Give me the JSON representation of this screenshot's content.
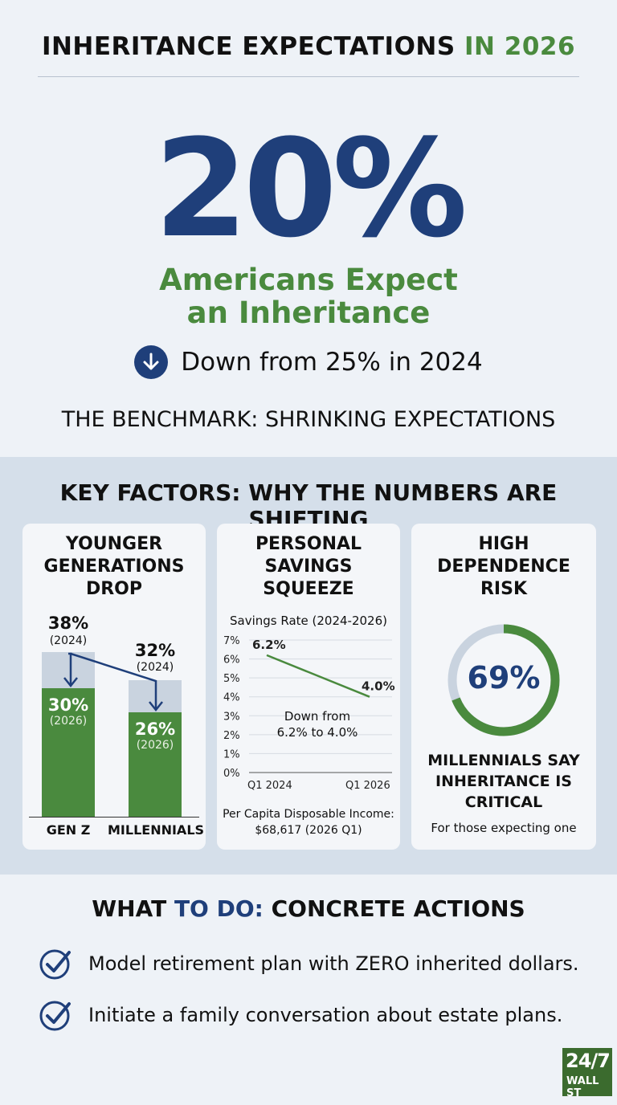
{
  "header": {
    "title_main": "INHERITANCE EXPECTATIONS ",
    "title_year": "IN 2026"
  },
  "hero": {
    "big_stat": "20%",
    "subtitle_line1": "Americans Expect",
    "subtitle_line2": "an Inheritance",
    "change_text": "Down from 25% in 2024",
    "change_icon": "arrow-down-icon",
    "benchmark": "THE BENCHMARK: SHRINKING EXPECTATIONS"
  },
  "key_factors": {
    "title": "KEY FACTORS: WHY THE NUMBERS ARE SHIFTING",
    "younger": {
      "title_line1": "YOUNGER",
      "title_line2": "GENERATIONS",
      "title_line3": "DROP",
      "genz": {
        "label": "GEN Z",
        "v2024": "38%",
        "y2024": "(2024)",
        "v2026": "30%",
        "y2026": "(2026)"
      },
      "millennials": {
        "label": "MILLENNIALS",
        "v2024": "32%",
        "y2024": "(2024)",
        "v2026": "26%",
        "y2026": "(2026)"
      }
    },
    "savings": {
      "title_line1": "PERSONAL",
      "title_line2": "SAVINGS",
      "title_line3": "SQUEEZE",
      "chart_title": "Savings Rate (2024-2026)",
      "y_ticks": [
        "7%",
        "6%",
        "5%",
        "4%",
        "3%",
        "2%",
        "1%",
        "0%"
      ],
      "start_label": "6.2%",
      "end_label": "4.0%",
      "note_line1": "Down from",
      "note_line2": "6.2% to 4.0%",
      "x_start": "Q1 2024",
      "x_end": "Q1 2026",
      "income_line1": "Per Capita Disposable Income:",
      "income_line2": "$68,617 (2026 Q1)"
    },
    "dependence": {
      "title_line1": "HIGH",
      "title_line2": "DEPENDENCE",
      "title_line3": "RISK",
      "value": "69%",
      "fraction": 0.69,
      "label_line1": "MILLENNIALS SAY",
      "label_line2": "INHERITANCE IS",
      "label_line3": "CRITICAL",
      "note": "For those expecting one"
    }
  },
  "actions": {
    "title_a": "WHAT ",
    "title_b": "TO DO:",
    "title_c": " CONCRETE ACTIONS",
    "items": [
      {
        "icon": "check-circle-icon",
        "text": "Model retirement plan with ZERO inherited dollars."
      },
      {
        "icon": "check-circle-icon",
        "text": "Initiate a family conversation about estate plans."
      }
    ]
  },
  "logo": {
    "line1": "24/7",
    "line2": "WALL ST"
  },
  "colors": {
    "navy": "#1f3f7a",
    "green": "#4a8a3e",
    "band": "#d5dfea"
  },
  "chart_data": [
    {
      "type": "bar",
      "categories": [
        "GEN Z",
        "MILLENNIALS"
      ],
      "series": [
        {
          "name": "2024",
          "values": [
            38,
            32
          ]
        },
        {
          "name": "2026",
          "values": [
            30,
            26
          ]
        }
      ]
    },
    {
      "type": "line",
      "title": "Savings Rate (2024-2026)",
      "x": [
        "Q1 2024",
        "Q1 2026"
      ],
      "y": [
        6.2,
        4.0
      ],
      "ylim": [
        0,
        7
      ],
      "y_ticks": [
        "7%",
        "6%",
        "5%",
        "4%",
        "3%",
        "2%",
        "1%",
        "0%"
      ],
      "grid": true
    },
    {
      "type": "pie",
      "values": [
        69,
        31
      ],
      "center_label": "69%"
    }
  ]
}
